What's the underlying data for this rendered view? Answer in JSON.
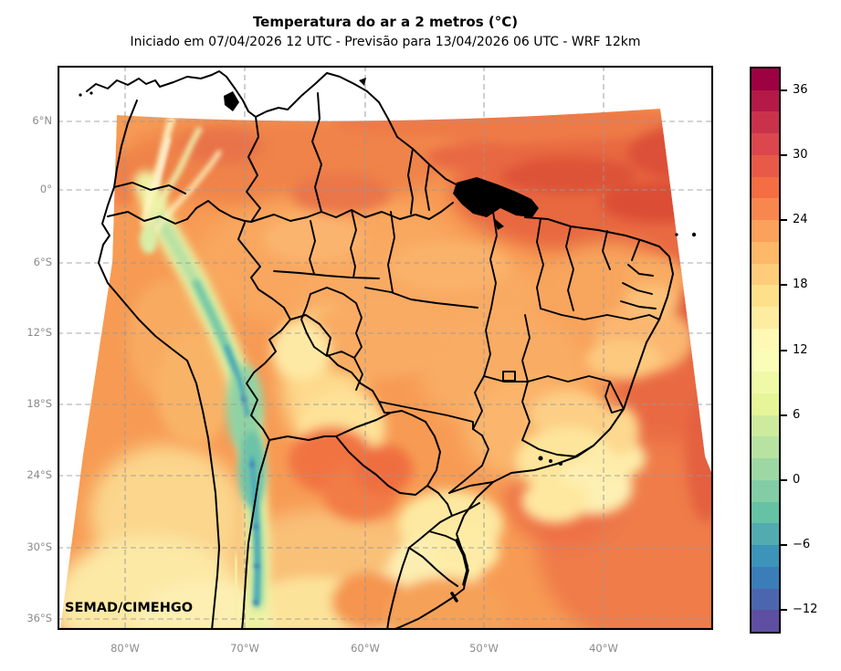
{
  "title": "Temperatura do ar a 2 metros (°C)",
  "subtitle": "Iniciado em 07/04/2026 12 UTC - Previsão para 13/04/2026 06 UTC - WRF 12km",
  "watermark": "SEMAD/CIMEHGO",
  "map": {
    "variable": "Temperatura do ar a 2 metros",
    "unit": "°C",
    "model": "WRF 12km",
    "init_time": "07/04/2026 12 UTC",
    "valid_time": "13/04/2026 06 UTC",
    "lat_labels": [
      "6°N",
      "0°",
      "6°S",
      "12°S",
      "18°S",
      "24°S",
      "30°S",
      "36°S"
    ],
    "lon_labels": [
      "80°W",
      "70°W",
      "60°W",
      "50°W",
      "40°W"
    ],
    "tick_label_color": "#8a8a8a",
    "grid_color": "#999999",
    "border_color": "#000000"
  },
  "colorbar": {
    "unit": "°C",
    "min": -14,
    "max": 38,
    "band_step": 2,
    "tick_labels": [
      "36",
      "30",
      "24",
      "18",
      "12",
      "6",
      "0",
      "−6",
      "−12"
    ],
    "tick_values": [
      36,
      30,
      24,
      18,
      12,
      6,
      0,
      -6,
      -12
    ],
    "colors": [
      "#5e4fa2",
      "#4c66ad",
      "#3b7db8",
      "#3c94b8",
      "#51abaf",
      "#66c2a5",
      "#82cda5",
      "#9dd8a4",
      "#b7e2a2",
      "#ceeb9d",
      "#e6f598",
      "#f0f9a8",
      "#fafdb7",
      "#fff9b5",
      "#feeca0",
      "#fee08b",
      "#fecc7a",
      "#fdb869",
      "#fba15b",
      "#f8874f",
      "#f46d43",
      "#e85a48",
      "#db474d",
      "#ca324c",
      "#b41947",
      "#9e0142"
    ]
  },
  "palette": {
    "base_land": "#f79b54",
    "warm_ocean": "#e8673f",
    "hot_patch": "#db4d36",
    "cool_pale": "#fdf0b2",
    "andes_green": "#b7e0a3",
    "andes_teal": "#46a5bb",
    "andes_cold": "#3f74b5"
  }
}
